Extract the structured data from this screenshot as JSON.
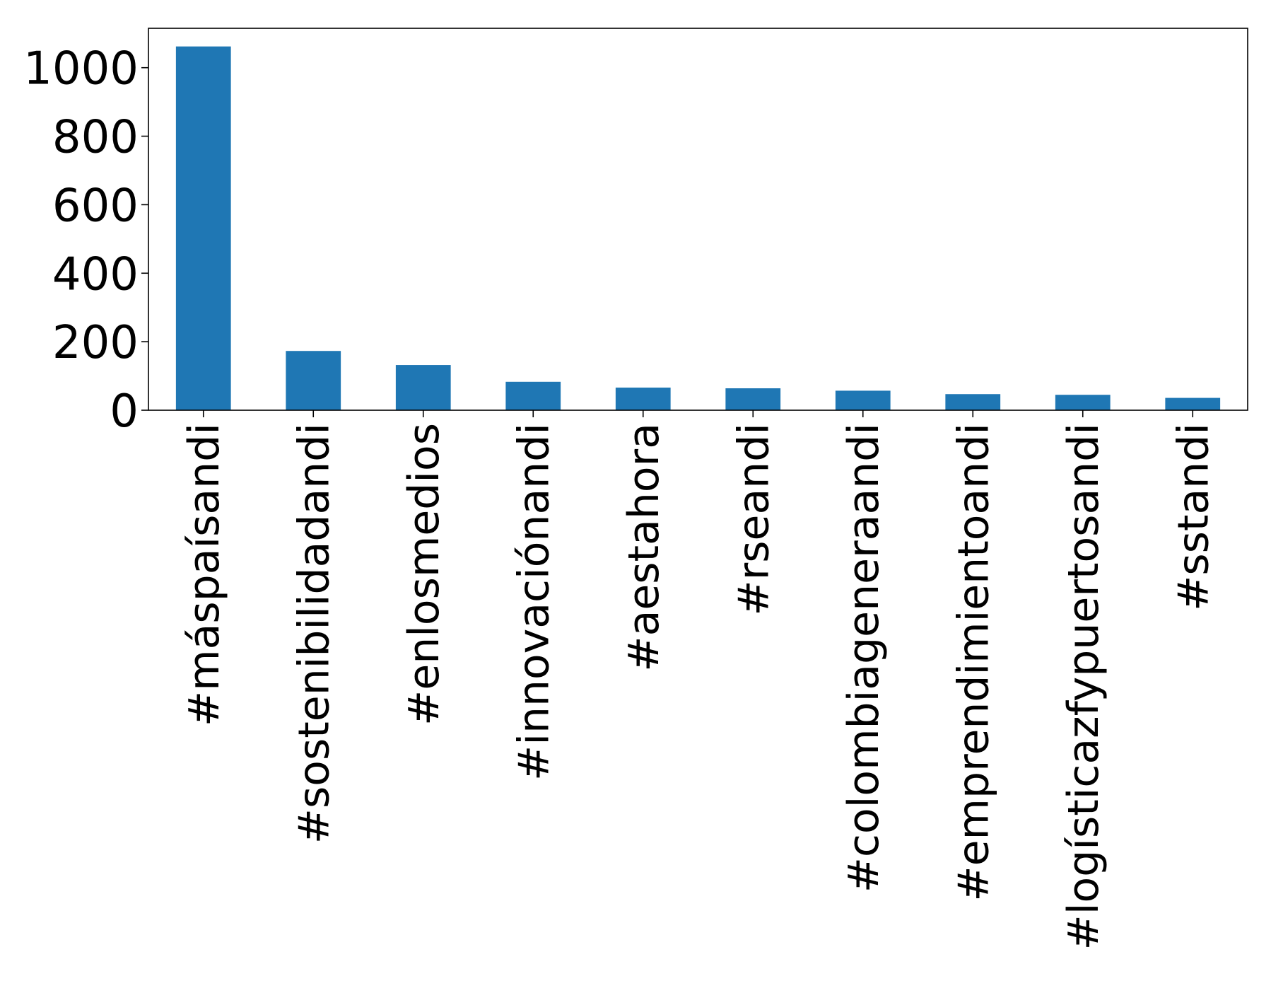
{
  "chart_data": {
    "type": "bar",
    "categories": [
      "#máspaísandi",
      "#sostenibilidadandi",
      "#enlosmedios",
      "#innovaciónandi",
      "#aestahora",
      "#rseandi",
      "#colombiageneraandi",
      "#emprendimientoandi",
      "#logísticazfypuertosandi",
      "#sstandi"
    ],
    "values": [
      1062,
      173,
      132,
      83,
      66,
      64,
      57,
      47,
      45,
      36
    ],
    "ylim": [
      0,
      1115
    ],
    "yticks": [
      0,
      200,
      400,
      600,
      800,
      1000
    ],
    "title": "",
    "xlabel": "",
    "ylabel": "",
    "grid": false,
    "bar_color": "#1f77b4"
  }
}
